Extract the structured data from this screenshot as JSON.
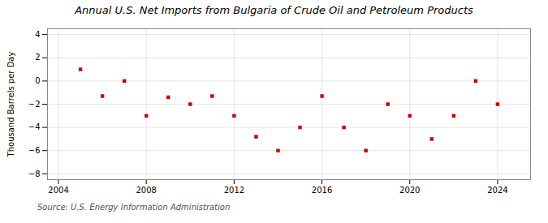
{
  "chart_data": {
    "type": "scatter",
    "title": "Annual U.S. Net Imports from Bulgaria of Crude Oil and Petroleum Products",
    "ylabel": "Thousand Barrels per Day",
    "source": "Source: U.S. Energy Information Administration",
    "x": [
      2005,
      2006,
      2007,
      2008,
      2009,
      2010,
      2011,
      2012,
      2013,
      2014,
      2015,
      2016,
      2017,
      2018,
      2019,
      2020,
      2021,
      2022,
      2023,
      2024
    ],
    "values": [
      1.0,
      -1.3,
      0.0,
      -3.0,
      -1.4,
      -2.0,
      -1.3,
      -3.0,
      -4.8,
      -6.0,
      -4.0,
      -1.3,
      -4.0,
      -6.0,
      -2.0,
      -3.0,
      -5.0,
      -3.0,
      0.0,
      -2.0
    ],
    "color": "#cc0000",
    "marker": "square",
    "xlim": [
      2003.5,
      2025.5
    ],
    "ylim": [
      -8.5,
      4.5
    ],
    "xticks": [
      2004,
      2008,
      2012,
      2016,
      2020,
      2024
    ],
    "yticks": [
      -8,
      -6,
      -4,
      -2,
      0,
      2,
      4
    ],
    "grid": true
  }
}
